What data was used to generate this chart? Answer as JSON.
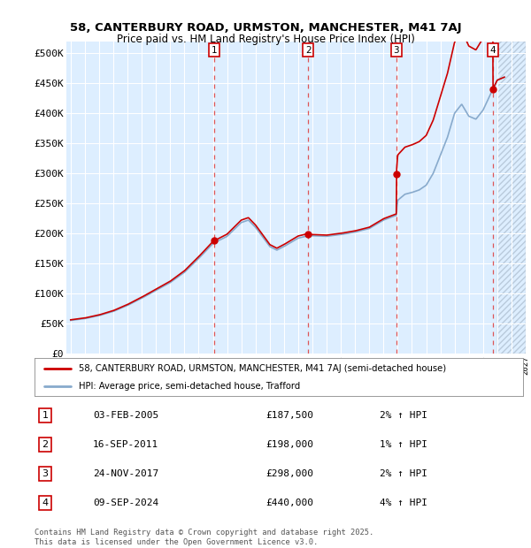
{
  "title_line1": "58, CANTERBURY ROAD, URMSTON, MANCHESTER, M41 7AJ",
  "title_line2": "Price paid vs. HM Land Registry's House Price Index (HPI)",
  "ylim": [
    0,
    520000
  ],
  "yticks": [
    0,
    50000,
    100000,
    150000,
    200000,
    250000,
    300000,
    350000,
    400000,
    450000,
    500000
  ],
  "ytick_labels": [
    "£0",
    "£50K",
    "£100K",
    "£150K",
    "£200K",
    "£250K",
    "£300K",
    "£350K",
    "£400K",
    "£450K",
    "£500K"
  ],
  "bg_color": "#ddeeff",
  "grid_color": "#ffffff",
  "sale_color": "#cc0000",
  "hpi_line_color": "#88aacc",
  "sale_dates": [
    2005.09,
    2011.71,
    2017.9,
    2024.69
  ],
  "sale_prices": [
    187500,
    198000,
    298000,
    440000
  ],
  "legend_sale_label": "58, CANTERBURY ROAD, URMSTON, MANCHESTER, M41 7AJ (semi-detached house)",
  "legend_hpi_label": "HPI: Average price, semi-detached house, Trafford",
  "table_rows": [
    {
      "num": "1",
      "date": "03-FEB-2005",
      "price": "£187,500",
      "hpi": "2% ↑ HPI"
    },
    {
      "num": "2",
      "date": "16-SEP-2011",
      "price": "£198,000",
      "hpi": "1% ↑ HPI"
    },
    {
      "num": "3",
      "date": "24-NOV-2017",
      "price": "£298,000",
      "hpi": "2% ↑ HPI"
    },
    {
      "num": "4",
      "date": "09-SEP-2024",
      "price": "£440,000",
      "hpi": "4% ↑ HPI"
    }
  ],
  "footer": "Contains HM Land Registry data © Crown copyright and database right 2025.\nThis data is licensed under the Open Government Licence v3.0.",
  "xmin": 1995,
  "xmax": 2027,
  "hatch_start": 2025.0
}
